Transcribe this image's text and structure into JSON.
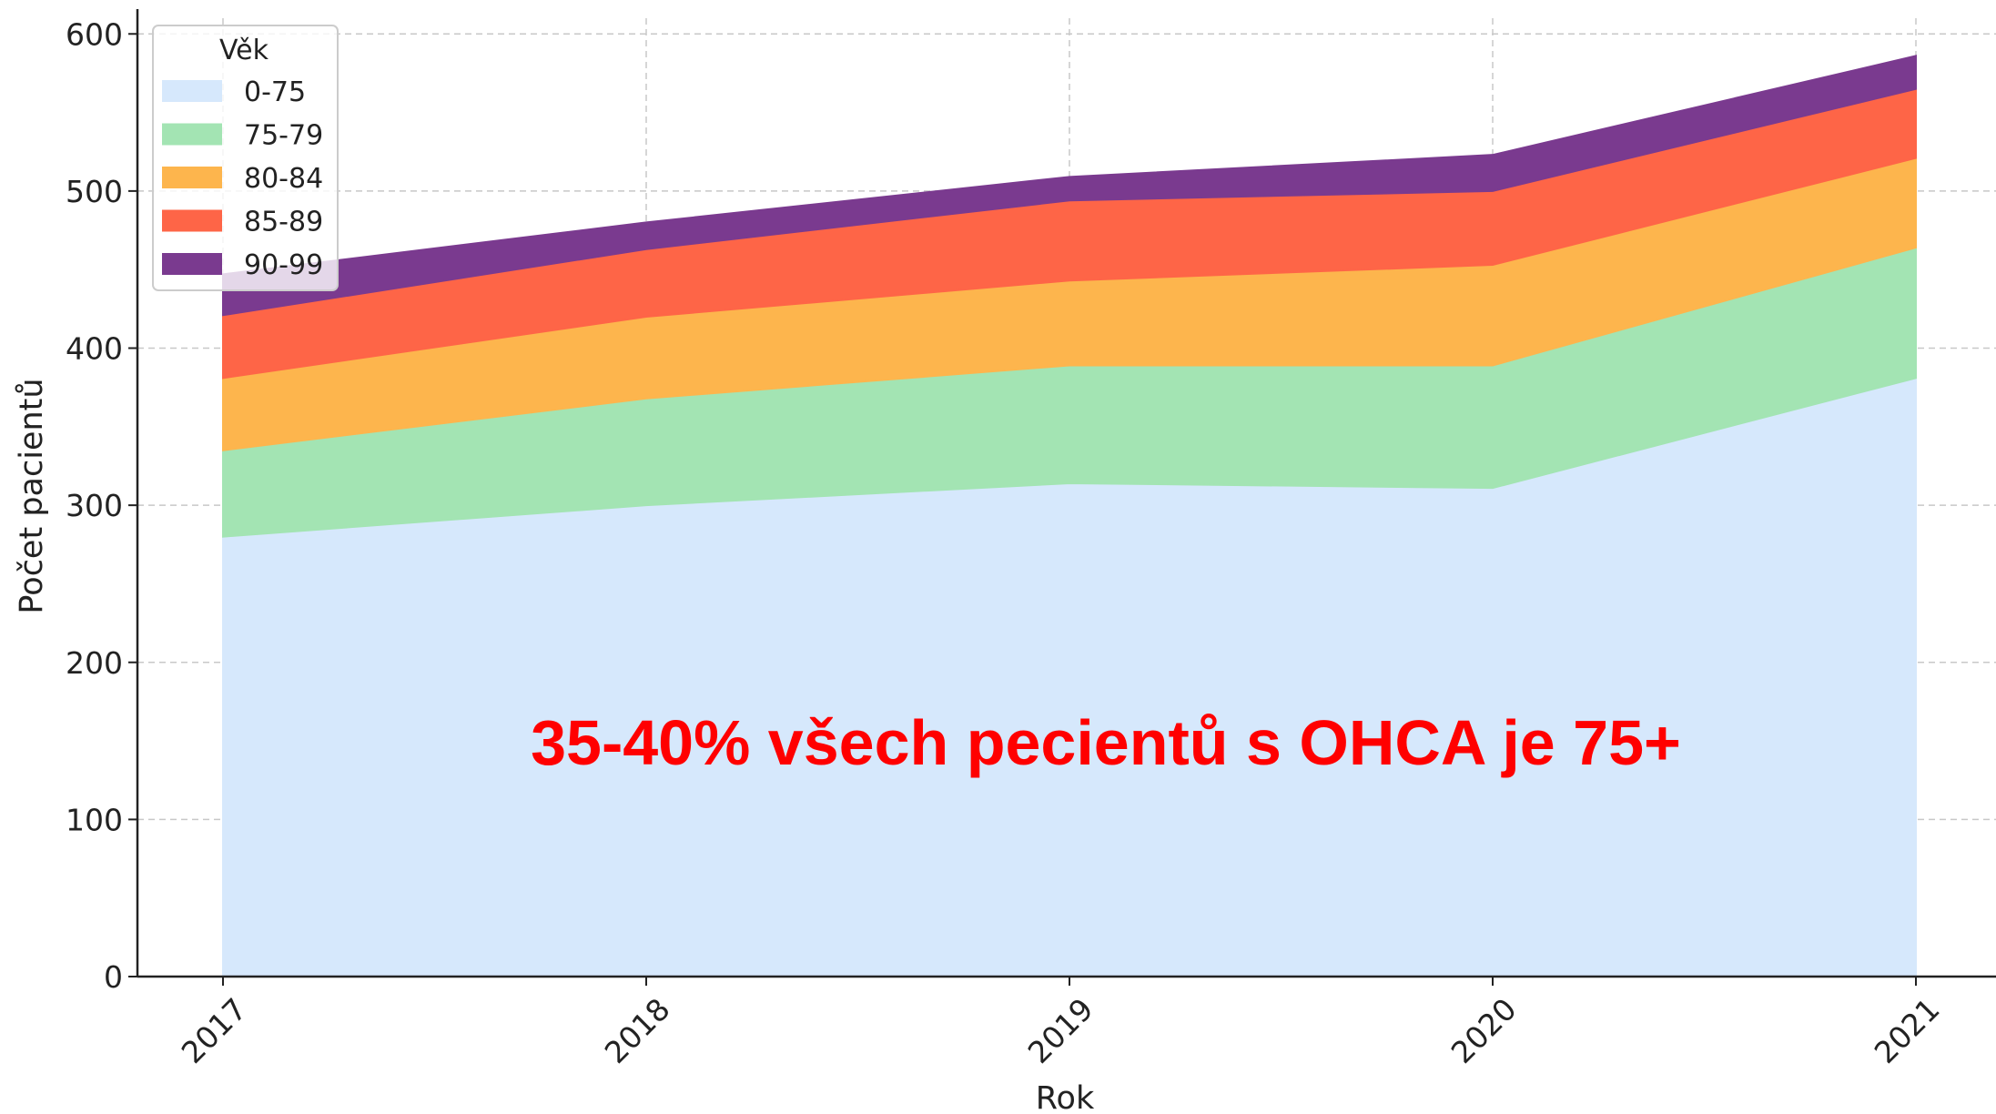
{
  "chart_data": {
    "type": "stacked_area",
    "categories": [
      "2017",
      "2018",
      "2019",
      "2020",
      "2021"
    ],
    "series": [
      {
        "name": "0-75",
        "color": "#d6e8fc",
        "values": [
          280,
          300,
          314,
          311,
          381
        ]
      },
      {
        "name": "75-79",
        "color": "#a3e4b3",
        "values": [
          55,
          68,
          75,
          78,
          83
        ]
      },
      {
        "name": "80-84",
        "color": "#fdb54d",
        "values": [
          46,
          52,
          54,
          64,
          57
        ]
      },
      {
        "name": "85-89",
        "color": "#fe6547",
        "values": [
          40,
          43,
          51,
          47,
          44
        ]
      },
      {
        "name": "90-99",
        "color": "#7a3a8f",
        "values": [
          26,
          17,
          15,
          23,
          21
        ]
      }
    ],
    "ylim": [
      0,
      610
    ],
    "yticks": [
      0,
      100,
      200,
      300,
      400,
      500,
      600
    ],
    "xlabel": "Rok",
    "ylabel": "Počet pacientů",
    "legend_title": "Věk",
    "legend": "upper left",
    "grid": true,
    "annotation": "35-40% všech pecientů s OHCA je 75+"
  }
}
